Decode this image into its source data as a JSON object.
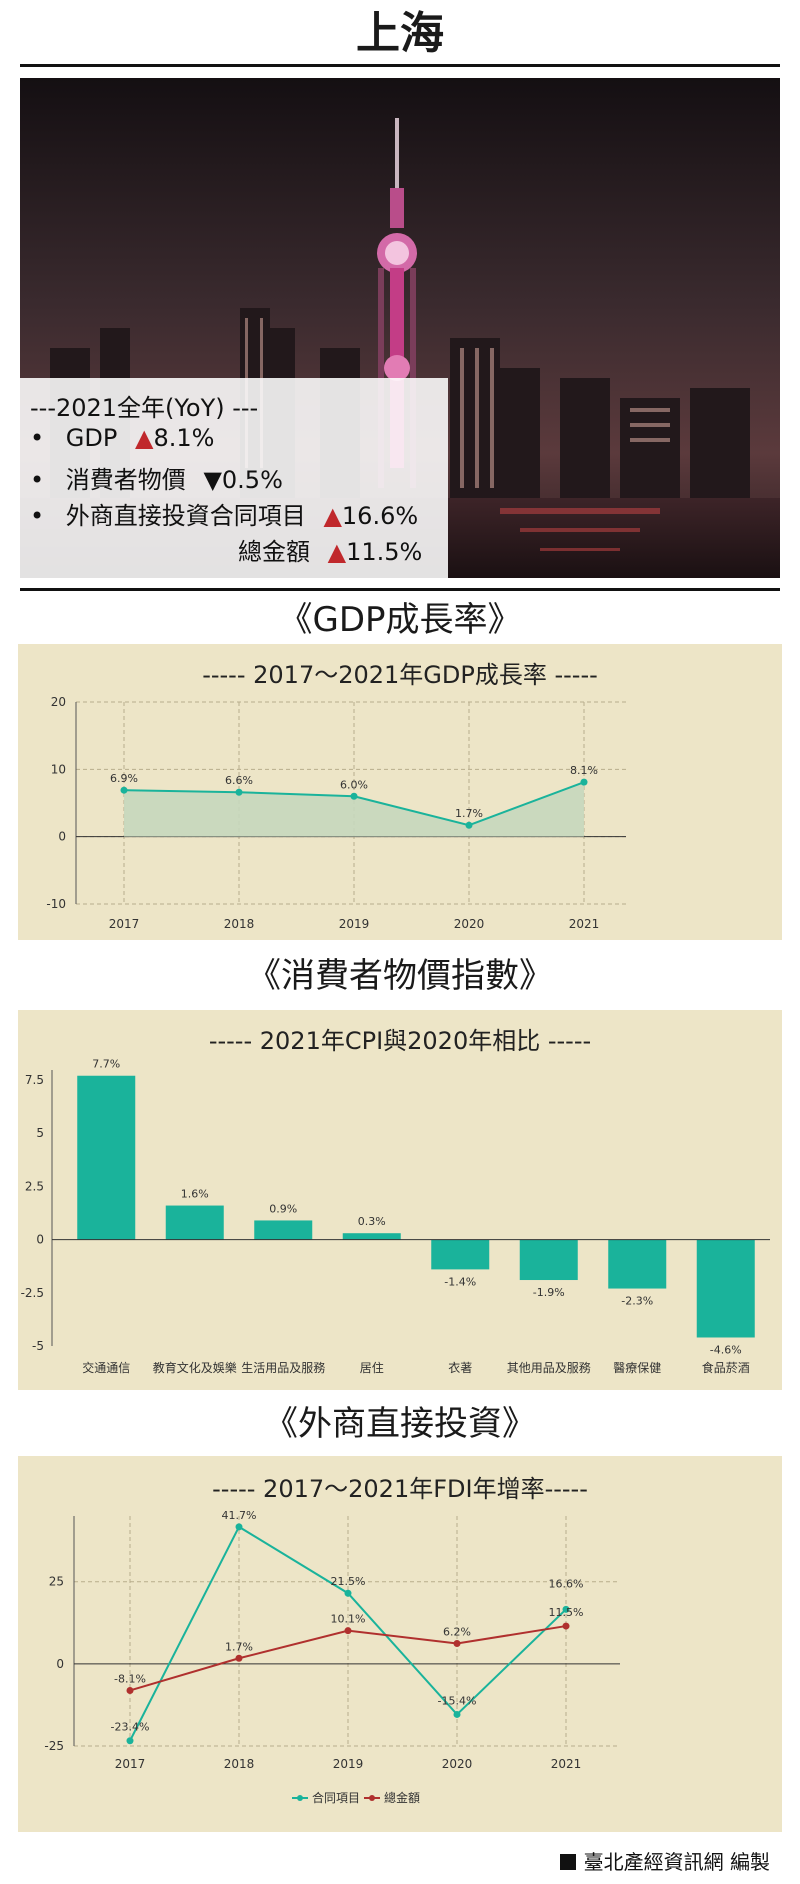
{
  "page": {
    "title": "上海",
    "footer": "臺北產經資訊網 編製"
  },
  "stats": {
    "header": "---2021全年(YoY) ---",
    "items": [
      {
        "label": "GDP",
        "direction": "up",
        "arrow": "▲",
        "value": "8.1%"
      },
      {
        "label": "消費者物價",
        "direction": "down",
        "arrow": "▼",
        "value": "0.5%"
      },
      {
        "label": "外商直接投資合同項目",
        "direction": "up",
        "arrow": "▲",
        "value": "16.6%"
      },
      {
        "label": "總金額",
        "direction": "up",
        "arrow": "▲",
        "value": "11.5%"
      }
    ],
    "bullet": "•"
  },
  "sections": {
    "gdp": "《GDP成長率》",
    "cpi": "《消費者物價指數》",
    "fdi": "《外商直接投資》"
  },
  "colors": {
    "panel_bg": "#ede5c7",
    "teal": "#1ab39b",
    "red": "#b0302e",
    "area": "#c5d7bd",
    "up_arrow": "#c0282c"
  },
  "chart_data": [
    {
      "type": "area",
      "title": "----- 2017～2021年GDP成長率 -----",
      "categories": [
        "2017",
        "2018",
        "2019",
        "2020",
        "2021"
      ],
      "series": [
        {
          "values": [
            6.9,
            6.6,
            6.0,
            1.7,
            8.1
          ]
        }
      ],
      "data_labels": [
        "6.9%",
        "6.6%",
        "6.0%",
        "1.7%",
        "8.1%"
      ],
      "ylim": [
        -10,
        20
      ],
      "yticks": [
        20,
        10,
        0,
        -10
      ],
      "grid": true
    },
    {
      "type": "bar",
      "title": "----- 2021年CPI與2020年相比 -----",
      "categories": [
        "交通通信",
        "教育文化及娛樂",
        "生活用品及服務",
        "居住",
        "衣著",
        "其他用品及服務",
        "醫療保健",
        "食品菸酒"
      ],
      "values": [
        7.7,
        1.6,
        0.9,
        0.3,
        -1.4,
        -1.9,
        -2.3,
        -4.6
      ],
      "data_labels": [
        "7.7%",
        "1.6%",
        "0.9%",
        "0.3%",
        "-1.4%",
        "-1.9%",
        "-2.3%",
        "-4.6%"
      ],
      "ylim": [
        -5,
        7.5
      ],
      "yticks": [
        7.5,
        5,
        2.5,
        0,
        -2.5,
        -5
      ],
      "grid": false
    },
    {
      "type": "line",
      "title": "----- 2017～2021年FDI年增率-----",
      "categories": [
        "2017",
        "2018",
        "2019",
        "2020",
        "2021"
      ],
      "series": [
        {
          "name": "合同項目",
          "values": [
            -23.4,
            41.7,
            21.5,
            -15.4,
            16.6
          ],
          "labels": [
            "-23.4%",
            "41.7%",
            "21.5%",
            "-15.4%",
            "16.6%"
          ]
        },
        {
          "name": "總金額",
          "values": [
            -8.1,
            1.7,
            10.1,
            6.2,
            11.5
          ],
          "labels": [
            "-8.1%",
            "1.7%",
            "10.1%",
            "6.2%",
            "11.5%"
          ]
        }
      ],
      "ylim": [
        -25,
        45
      ],
      "yticks": [
        25,
        0,
        -25
      ],
      "legend": "bottom",
      "grid": true
    }
  ]
}
